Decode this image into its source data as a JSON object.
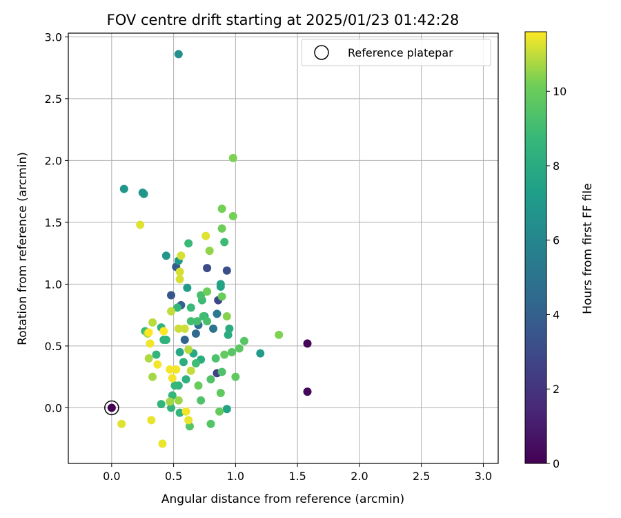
{
  "chart_data": {
    "type": "scatter",
    "title": "FOV centre drift starting at 2025/01/23 01:42:28",
    "xlabel": "Angular distance from reference (arcmin)",
    "ylabel": "Rotation from reference (arcmin)",
    "xlim": [
      -0.35,
      3.12
    ],
    "ylim": [
      -0.45,
      3.03
    ],
    "xticks": [
      "0.0",
      "0.5",
      "1.0",
      "1.5",
      "2.0",
      "2.5",
      "3.0"
    ],
    "yticks": [
      "0.0",
      "0.5",
      "1.0",
      "1.5",
      "2.0",
      "2.5",
      "3.0"
    ],
    "grid": true,
    "legend": {
      "location": "upper right",
      "entries": [
        "Reference platepar"
      ]
    },
    "reference_point": {
      "x": 0.0,
      "y": 0.0
    },
    "colorbar": {
      "label": "Hours from first FF file",
      "colormap": "viridis",
      "range": [
        0,
        11.6
      ],
      "ticks": [
        "0",
        "2",
        "4",
        "6",
        "8",
        "10"
      ]
    },
    "points": [
      {
        "x": 0.0,
        "y": 0.0,
        "c": 0.0
      },
      {
        "x": 1.58,
        "y": 0.52,
        "c": 0.2
      },
      {
        "x": 1.58,
        "y": 0.13,
        "c": 0.3
      },
      {
        "x": 0.85,
        "y": 0.28,
        "c": 2.5
      },
      {
        "x": 0.86,
        "y": 0.87,
        "c": 2.8
      },
      {
        "x": 0.77,
        "y": 1.13,
        "c": 3.0
      },
      {
        "x": 0.93,
        "y": 1.11,
        "c": 3.2
      },
      {
        "x": 0.48,
        "y": 0.91,
        "c": 3.5
      },
      {
        "x": 0.52,
        "y": 1.14,
        "c": 3.8
      },
      {
        "x": 0.56,
        "y": 0.83,
        "c": 4.0
      },
      {
        "x": 0.59,
        "y": 0.55,
        "c": 4.2
      },
      {
        "x": 0.68,
        "y": 0.6,
        "c": 4.5
      },
      {
        "x": 0.7,
        "y": 0.67,
        "c": 4.7
      },
      {
        "x": 0.82,
        "y": 0.64,
        "c": 5.0
      },
      {
        "x": 0.85,
        "y": 0.76,
        "c": 5.3
      },
      {
        "x": 0.54,
        "y": 2.86,
        "c": 6.5
      },
      {
        "x": 0.1,
        "y": 1.77,
        "c": 6.9
      },
      {
        "x": 0.25,
        "y": 1.74,
        "c": 6.9
      },
      {
        "x": 0.26,
        "y": 1.73,
        "c": 6.9
      },
      {
        "x": 0.44,
        "y": 1.23,
        "c": 6.9
      },
      {
        "x": 0.54,
        "y": 1.19,
        "c": 7.0
      },
      {
        "x": 0.61,
        "y": 0.97,
        "c": 7.2
      },
      {
        "x": 1.2,
        "y": 0.44,
        "c": 7.2
      },
      {
        "x": 0.93,
        "y": -0.01,
        "c": 7.5
      },
      {
        "x": 0.88,
        "y": 0.98,
        "c": 7.5
      },
      {
        "x": 0.88,
        "y": 1.0,
        "c": 7.6
      },
      {
        "x": 0.55,
        "y": 0.45,
        "c": 7.8
      },
      {
        "x": 0.66,
        "y": 0.44,
        "c": 7.8
      },
      {
        "x": 0.75,
        "y": 0.74,
        "c": 7.9
      },
      {
        "x": 0.94,
        "y": 0.59,
        "c": 8.0
      },
      {
        "x": 0.95,
        "y": 0.64,
        "c": 8.0
      },
      {
        "x": 0.72,
        "y": 0.39,
        "c": 8.1
      },
      {
        "x": 0.58,
        "y": 0.37,
        "c": 8.2
      },
      {
        "x": 0.6,
        "y": 0.23,
        "c": 8.3
      },
      {
        "x": 0.42,
        "y": 0.55,
        "c": 8.3
      },
      {
        "x": 0.44,
        "y": 0.55,
        "c": 8.4
      },
      {
        "x": 0.4,
        "y": 0.65,
        "c": 8.4
      },
      {
        "x": 0.36,
        "y": 0.43,
        "c": 8.5
      },
      {
        "x": 0.54,
        "y": 0.18,
        "c": 8.5
      },
      {
        "x": 0.55,
        "y": -0.04,
        "c": 8.5
      },
      {
        "x": 0.4,
        "y": 0.03,
        "c": 8.6
      },
      {
        "x": 0.48,
        "y": 0.0,
        "c": 8.6
      },
      {
        "x": 0.49,
        "y": 0.1,
        "c": 8.7
      },
      {
        "x": 0.51,
        "y": 0.18,
        "c": 8.7
      },
      {
        "x": 0.53,
        "y": 0.81,
        "c": 8.7
      },
      {
        "x": 0.64,
        "y": 0.81,
        "c": 8.8
      },
      {
        "x": 0.62,
        "y": 1.33,
        "c": 8.8
      },
      {
        "x": 0.73,
        "y": 0.87,
        "c": 8.9
      },
      {
        "x": 0.91,
        "y": 1.34,
        "c": 8.9
      },
      {
        "x": 0.27,
        "y": 0.62,
        "c": 8.9
      },
      {
        "x": 0.68,
        "y": 0.36,
        "c": 9.0
      },
      {
        "x": 0.74,
        "y": 0.74,
        "c": 9.0
      },
      {
        "x": 0.64,
        "y": 0.7,
        "c": 9.1
      },
      {
        "x": 0.69,
        "y": 0.7,
        "c": 9.1
      },
      {
        "x": 0.72,
        "y": 0.91,
        "c": 9.2
      },
      {
        "x": 0.77,
        "y": 0.7,
        "c": 9.2
      },
      {
        "x": 0.84,
        "y": 0.4,
        "c": 9.3
      },
      {
        "x": 0.89,
        "y": 0.29,
        "c": 9.3
      },
      {
        "x": 0.8,
        "y": 0.23,
        "c": 9.4
      },
      {
        "x": 0.72,
        "y": 0.06,
        "c": 9.4
      },
      {
        "x": 0.8,
        "y": -0.13,
        "c": 9.5
      },
      {
        "x": 0.63,
        "y": -0.15,
        "c": 9.5
      },
      {
        "x": 0.97,
        "y": 0.45,
        "c": 9.6
      },
      {
        "x": 1.07,
        "y": 0.54,
        "c": 9.6
      },
      {
        "x": 1.03,
        "y": 0.48,
        "c": 9.7
      },
      {
        "x": 1.0,
        "y": 0.25,
        "c": 9.8
      },
      {
        "x": 0.88,
        "y": 0.12,
        "c": 9.8
      },
      {
        "x": 0.87,
        "y": -0.03,
        "c": 9.9
      },
      {
        "x": 0.91,
        "y": 0.43,
        "c": 9.9
      },
      {
        "x": 0.7,
        "y": 0.18,
        "c": 10.0
      },
      {
        "x": 0.89,
        "y": 0.9,
        "c": 10.0
      },
      {
        "x": 0.77,
        "y": 0.94,
        "c": 10.1
      },
      {
        "x": 0.89,
        "y": 1.45,
        "c": 10.1
      },
      {
        "x": 0.89,
        "y": 1.61,
        "c": 10.2
      },
      {
        "x": 0.98,
        "y": 1.55,
        "c": 10.2
      },
      {
        "x": 0.98,
        "y": 2.02,
        "c": 10.3
      },
      {
        "x": 1.35,
        "y": 0.59,
        "c": 10.3
      },
      {
        "x": 0.93,
        "y": 0.74,
        "c": 10.4
      },
      {
        "x": 0.79,
        "y": 1.27,
        "c": 10.5
      },
      {
        "x": 0.54,
        "y": 0.06,
        "c": 10.6
      },
      {
        "x": 0.47,
        "y": 0.05,
        "c": 10.7
      },
      {
        "x": 0.33,
        "y": 0.25,
        "c": 10.7
      },
      {
        "x": 0.3,
        "y": 0.4,
        "c": 10.8
      },
      {
        "x": 0.29,
        "y": 0.6,
        "c": 10.8
      },
      {
        "x": 0.33,
        "y": 0.69,
        "c": 10.9
      },
      {
        "x": 0.62,
        "y": 0.47,
        "c": 10.9
      },
      {
        "x": 0.64,
        "y": 0.3,
        "c": 11.0
      },
      {
        "x": 0.48,
        "y": 0.78,
        "c": 11.0
      },
      {
        "x": 0.54,
        "y": 0.64,
        "c": 11.1
      },
      {
        "x": 0.59,
        "y": 0.64,
        "c": 11.1
      },
      {
        "x": 0.55,
        "y": 1.04,
        "c": 11.2
      },
      {
        "x": 0.55,
        "y": 1.1,
        "c": 11.2
      },
      {
        "x": 0.56,
        "y": 1.23,
        "c": 11.2
      },
      {
        "x": 0.23,
        "y": 1.48,
        "c": 11.3
      },
      {
        "x": 0.76,
        "y": 1.39,
        "c": 11.3
      },
      {
        "x": 0.08,
        "y": -0.13,
        "c": 11.3
      },
      {
        "x": 0.32,
        "y": -0.1,
        "c": 11.4
      },
      {
        "x": 0.41,
        "y": -0.29,
        "c": 11.4
      },
      {
        "x": 0.62,
        "y": -0.1,
        "c": 11.4
      },
      {
        "x": 0.6,
        "y": -0.03,
        "c": 11.5
      },
      {
        "x": 0.49,
        "y": 0.24,
        "c": 11.5
      },
      {
        "x": 0.52,
        "y": 0.31,
        "c": 11.5
      },
      {
        "x": 0.47,
        "y": 0.31,
        "c": 11.5
      },
      {
        "x": 0.37,
        "y": 0.35,
        "c": 11.5
      },
      {
        "x": 0.31,
        "y": 0.52,
        "c": 11.5
      },
      {
        "x": 0.3,
        "y": 0.61,
        "c": 11.6
      },
      {
        "x": 0.42,
        "y": 0.62,
        "c": 11.6
      }
    ]
  }
}
